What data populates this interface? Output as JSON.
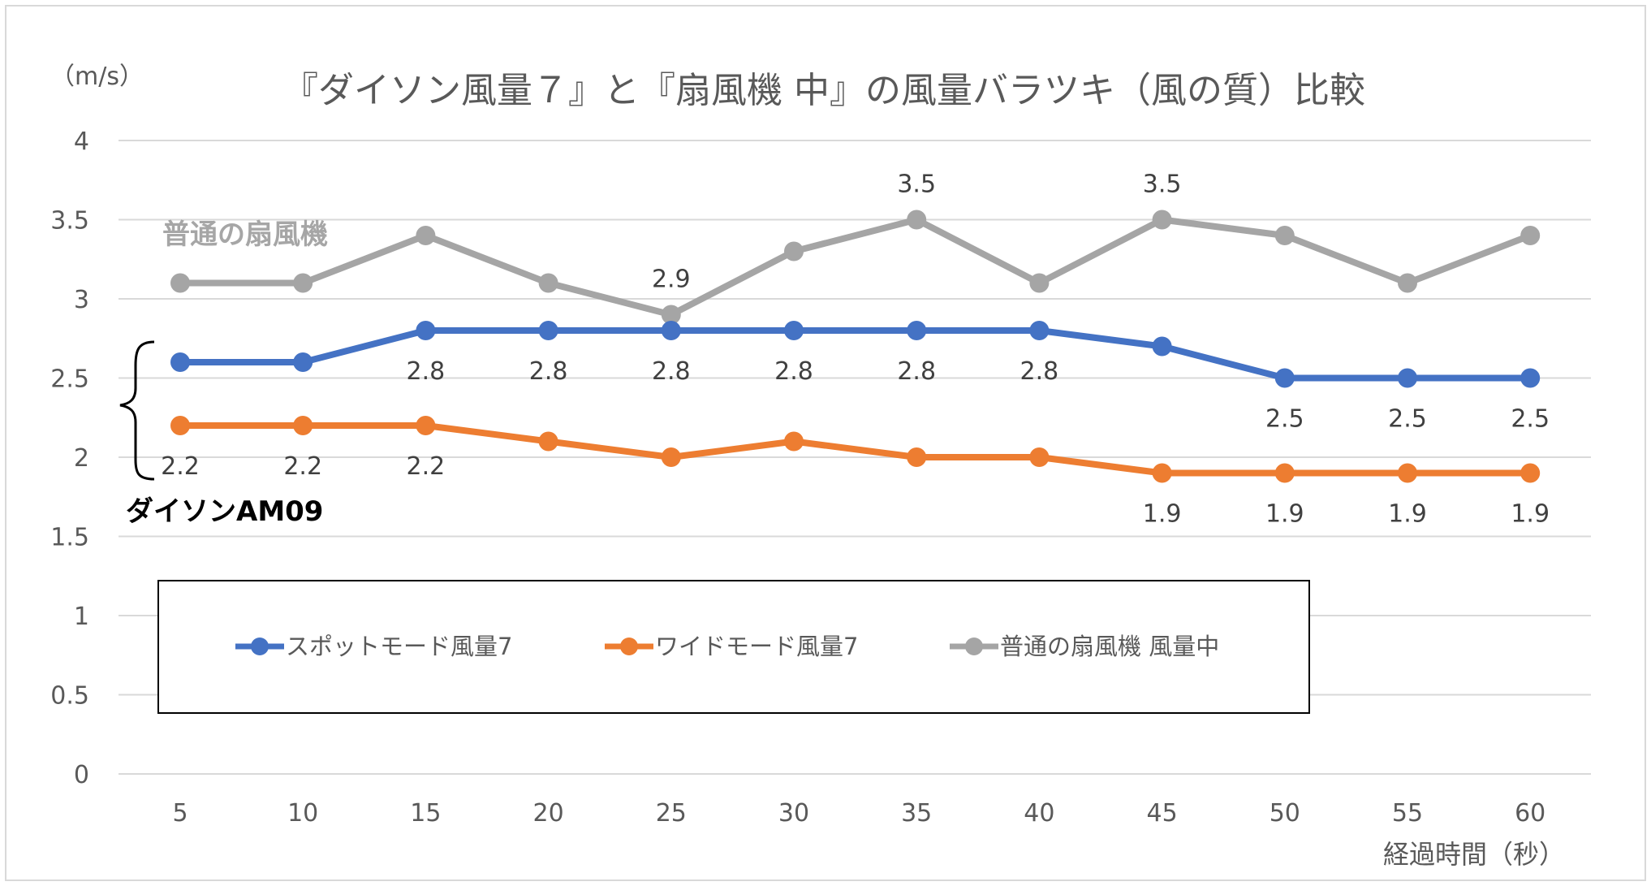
{
  "chart_data": {
    "type": "line",
    "title": "『ダイソン風量７』と『扇風機 中』の風量バラツキ（風の質）比較",
    "unit_label": "（m/s）",
    "xlabel": "経過時間（秒）",
    "ylabel": "",
    "x": [
      5,
      10,
      15,
      20,
      25,
      30,
      35,
      40,
      45,
      50,
      55,
      60
    ],
    "ylim": [
      0,
      4
    ],
    "yticks": [
      "0",
      "0.5",
      "1",
      "1.5",
      "2",
      "2.5",
      "3",
      "3.5",
      "4"
    ],
    "grid": true,
    "legend_position": "bottom-left",
    "series": [
      {
        "name": "スポットモード風量7",
        "color": "#4472c4",
        "values": [
          2.6,
          2.6,
          2.8,
          2.8,
          2.8,
          2.8,
          2.8,
          2.8,
          2.7,
          2.5,
          2.5,
          2.5
        ],
        "labels": [
          null,
          null,
          "2.8",
          "2.8",
          "2.8",
          "2.8",
          "2.8",
          "2.8",
          null,
          "2.5",
          "2.5",
          "2.5"
        ],
        "label_side": "below"
      },
      {
        "name": "ワイドモード風量7",
        "color": "#ed7d31",
        "values": [
          2.2,
          2.2,
          2.2,
          2.1,
          2.0,
          2.1,
          2.0,
          2.0,
          1.9,
          1.9,
          1.9,
          1.9
        ],
        "labels": [
          "2.2",
          "2.2",
          "2.2",
          null,
          null,
          null,
          null,
          null,
          "1.9",
          "1.9",
          "1.9",
          "1.9"
        ],
        "label_side": "below"
      },
      {
        "name": "普通の扇風機 風量中",
        "color": "#a5a5a5",
        "values": [
          3.1,
          3.1,
          3.4,
          3.1,
          2.9,
          3.3,
          3.5,
          3.1,
          3.5,
          3.4,
          3.1,
          3.4
        ],
        "labels": [
          null,
          null,
          null,
          null,
          "2.9",
          null,
          "3.5",
          null,
          "3.5",
          null,
          null,
          null
        ],
        "label_side": "above"
      }
    ],
    "annotations": {
      "fan_label": "普通の扇風機",
      "dyson_label": "ダイソンAM09"
    }
  }
}
